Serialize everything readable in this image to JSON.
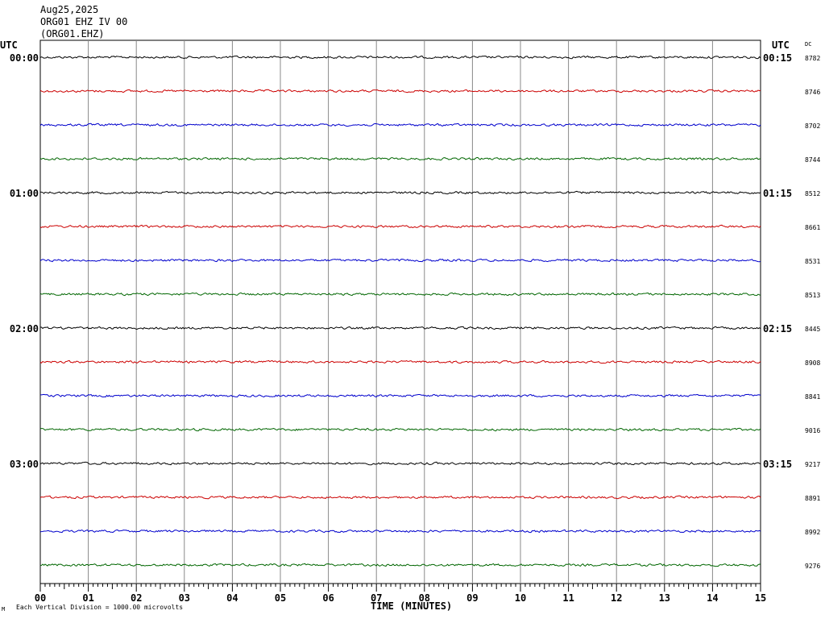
{
  "header": {
    "date": "Aug25,2025",
    "station": "ORG01 EHZ IV 00",
    "channel": "(ORG01.EHZ)"
  },
  "left_axis_title": "UTC",
  "right_axis_title": "UTC",
  "dc_title": "DC",
  "footnote": "Each Vertical Division = 1000.00 microvolts",
  "corner_mark": "M",
  "chart_data": {
    "type": "line",
    "title": "",
    "xlabel": "TIME (MINUTES)",
    "ylabel": "",
    "xlim": [
      0,
      15
    ],
    "x_ticks": [
      "00",
      "01",
      "02",
      "03",
      "04",
      "05",
      "06",
      "07",
      "08",
      "09",
      "10",
      "11",
      "12",
      "13",
      "14",
      "15"
    ],
    "grid": "vertical lines every minute",
    "trace_colors": [
      "#000000",
      "#cc0000",
      "#0000cc",
      "#006600"
    ],
    "hour_labels_left": [
      {
        "trace_index": 0,
        "label": "00:00"
      },
      {
        "trace_index": 4,
        "label": "01:00"
      },
      {
        "trace_index": 8,
        "label": "02:00"
      },
      {
        "trace_index": 12,
        "label": "03:00"
      }
    ],
    "hour_labels_right": [
      {
        "trace_index": 0,
        "label": "00:15"
      },
      {
        "trace_index": 4,
        "label": "01:15"
      },
      {
        "trace_index": 8,
        "label": "02:15"
      },
      {
        "trace_index": 12,
        "label": "03:15"
      }
    ],
    "dc_values": [
      "8782",
      "8746",
      "8702",
      "8744",
      "8512",
      "8661",
      "8531",
      "8513",
      "8445",
      "8908",
      "8841",
      "9016",
      "9217",
      "8891",
      "8992",
      "9276"
    ]
  }
}
